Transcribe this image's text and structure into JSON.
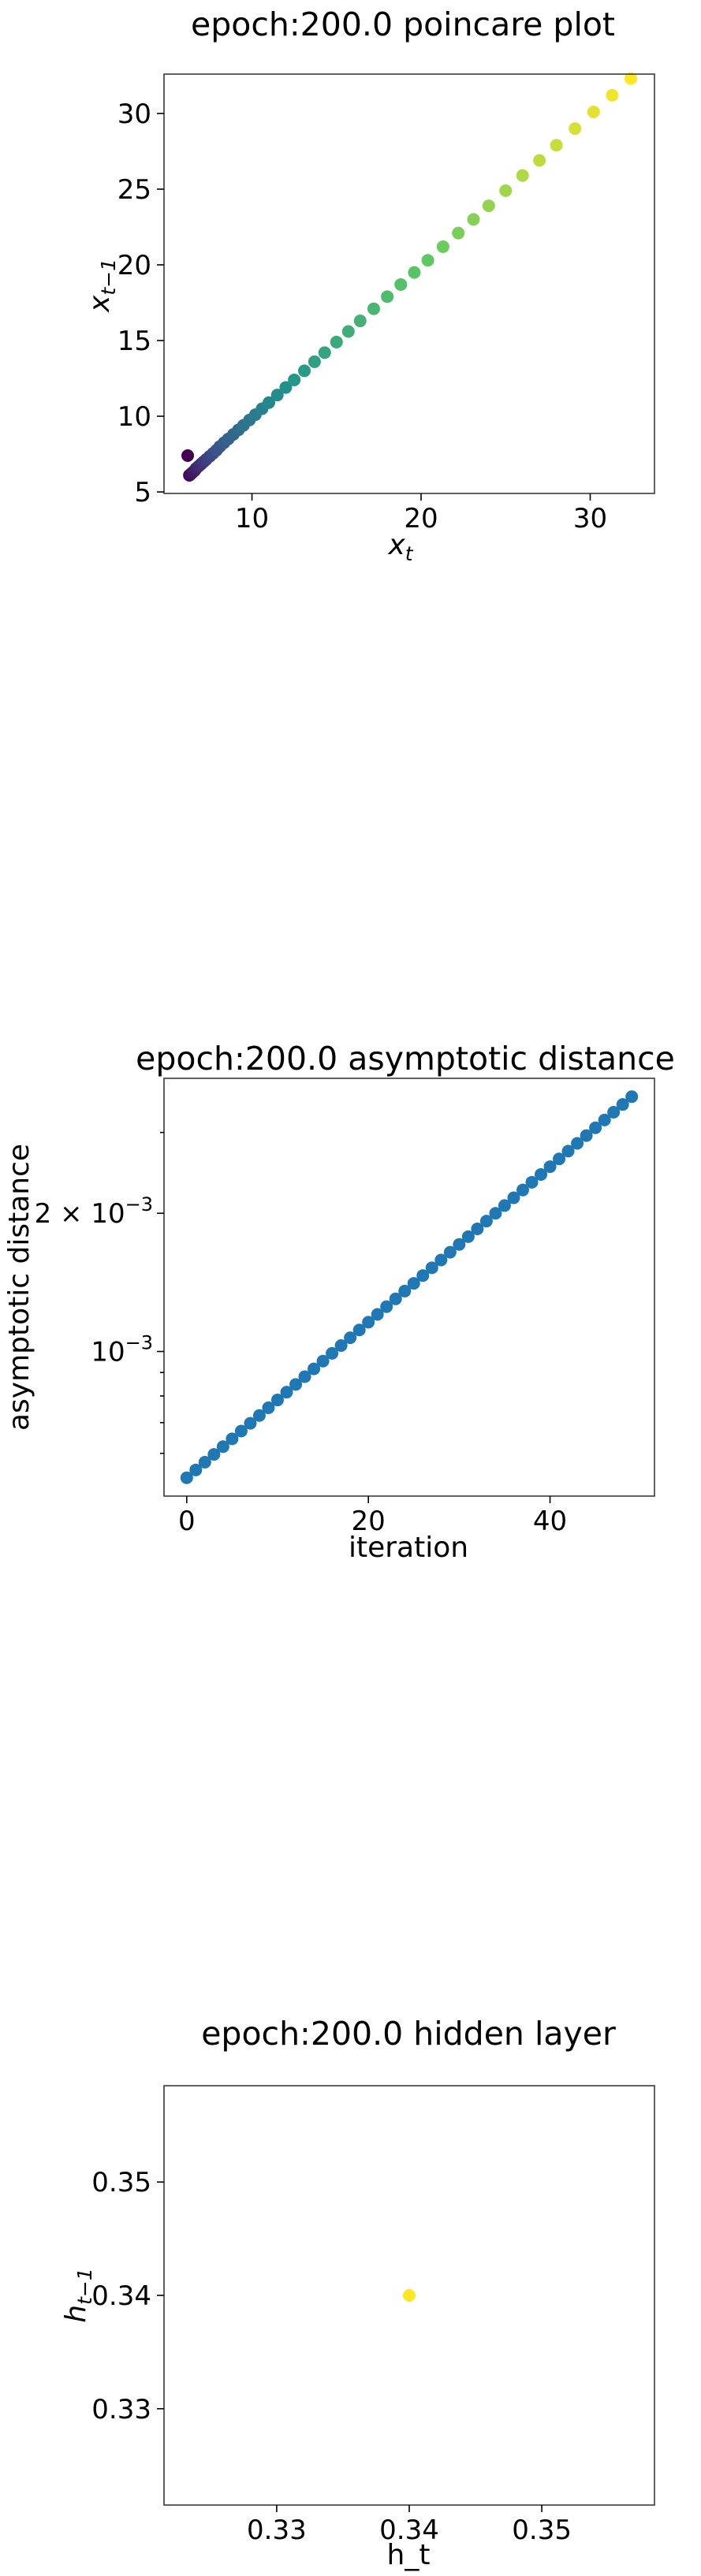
{
  "chart_data": [
    {
      "type": "scatter",
      "title": "epoch:200.0 poincare plot",
      "xlabel": "x",
      "xlabel_sub": "t",
      "ylabel": "x",
      "ylabel_sub": "t−1",
      "xlim": [
        4.8,
        33.8
      ],
      "ylim": [
        4.9,
        32.6
      ],
      "xticks": [
        "10",
        "20",
        "30"
      ],
      "yticks": [
        "5",
        "10",
        "15",
        "20",
        "25",
        "30"
      ],
      "colormap": "viridis",
      "points": [
        [
          6.2,
          7.4
        ],
        [
          6.3,
          6.1
        ],
        [
          6.4,
          6.2
        ],
        [
          6.5,
          6.3
        ],
        [
          6.6,
          6.4
        ],
        [
          6.7,
          6.55
        ],
        [
          6.85,
          6.7
        ],
        [
          7.0,
          6.85
        ],
        [
          7.15,
          7.0
        ],
        [
          7.3,
          7.15
        ],
        [
          7.5,
          7.35
        ],
        [
          7.7,
          7.55
        ],
        [
          7.9,
          7.75
        ],
        [
          8.1,
          8.0
        ],
        [
          8.35,
          8.25
        ],
        [
          8.6,
          8.5
        ],
        [
          8.9,
          8.8
        ],
        [
          9.2,
          9.1
        ],
        [
          9.5,
          9.4
        ],
        [
          9.85,
          9.75
        ],
        [
          10.2,
          10.1
        ],
        [
          10.6,
          10.5
        ],
        [
          11.0,
          10.9
        ],
        [
          11.5,
          11.4
        ],
        [
          12.0,
          11.9
        ],
        [
          12.5,
          12.4
        ],
        [
          13.1,
          13.0
        ],
        [
          13.7,
          13.6
        ],
        [
          14.3,
          14.2
        ],
        [
          15.0,
          14.9
        ],
        [
          15.7,
          15.6
        ],
        [
          16.4,
          16.3
        ],
        [
          17.2,
          17.1
        ],
        [
          18.0,
          17.9
        ],
        [
          18.8,
          18.7
        ],
        [
          19.6,
          19.5
        ],
        [
          20.4,
          20.3
        ],
        [
          21.3,
          21.2
        ],
        [
          22.2,
          22.1
        ],
        [
          23.1,
          23.0
        ],
        [
          24.0,
          23.9
        ],
        [
          25.0,
          24.9
        ],
        [
          26.0,
          25.9
        ],
        [
          27.0,
          26.9
        ],
        [
          28.0,
          27.9
        ],
        [
          29.1,
          29.0
        ],
        [
          30.2,
          30.1
        ],
        [
          31.3,
          31.2
        ],
        [
          32.4,
          32.3
        ]
      ]
    },
    {
      "type": "scatter",
      "title": "epoch:200.0 asymptotic distance",
      "xlabel": "iteration",
      "ylabel": "asymptotic distance",
      "yscale": "log",
      "xlim": [
        -2.5,
        51.5
      ],
      "ylim_log10": [
        -3.315,
        -2.405
      ],
      "xticks": [
        "0",
        "20",
        "40"
      ],
      "yticks": [
        {
          "label": "10",
          "exp": "−3",
          "value": 0.001
        },
        {
          "label": "2 × 10",
          "exp": "−3",
          "value": 0.002
        }
      ],
      "color": "#1f77b4",
      "x_start": 0,
      "x_end": 49,
      "y_start_log10": -3.275,
      "y_end_log10": -2.445
    },
    {
      "type": "scatter",
      "title": "epoch:200.0 hidden layer",
      "xlabel": "h_t",
      "ylabel": "h",
      "ylabel_sub": "t−1",
      "xlim": [
        0.3215,
        0.3585
      ],
      "ylim": [
        0.3215,
        0.3585
      ],
      "xticks": [
        "0.33",
        "0.34",
        "0.35"
      ],
      "yticks": [
        "0.33",
        "0.34",
        "0.35"
      ],
      "color": "#fde725",
      "points": [
        [
          0.34,
          0.34
        ]
      ]
    }
  ]
}
